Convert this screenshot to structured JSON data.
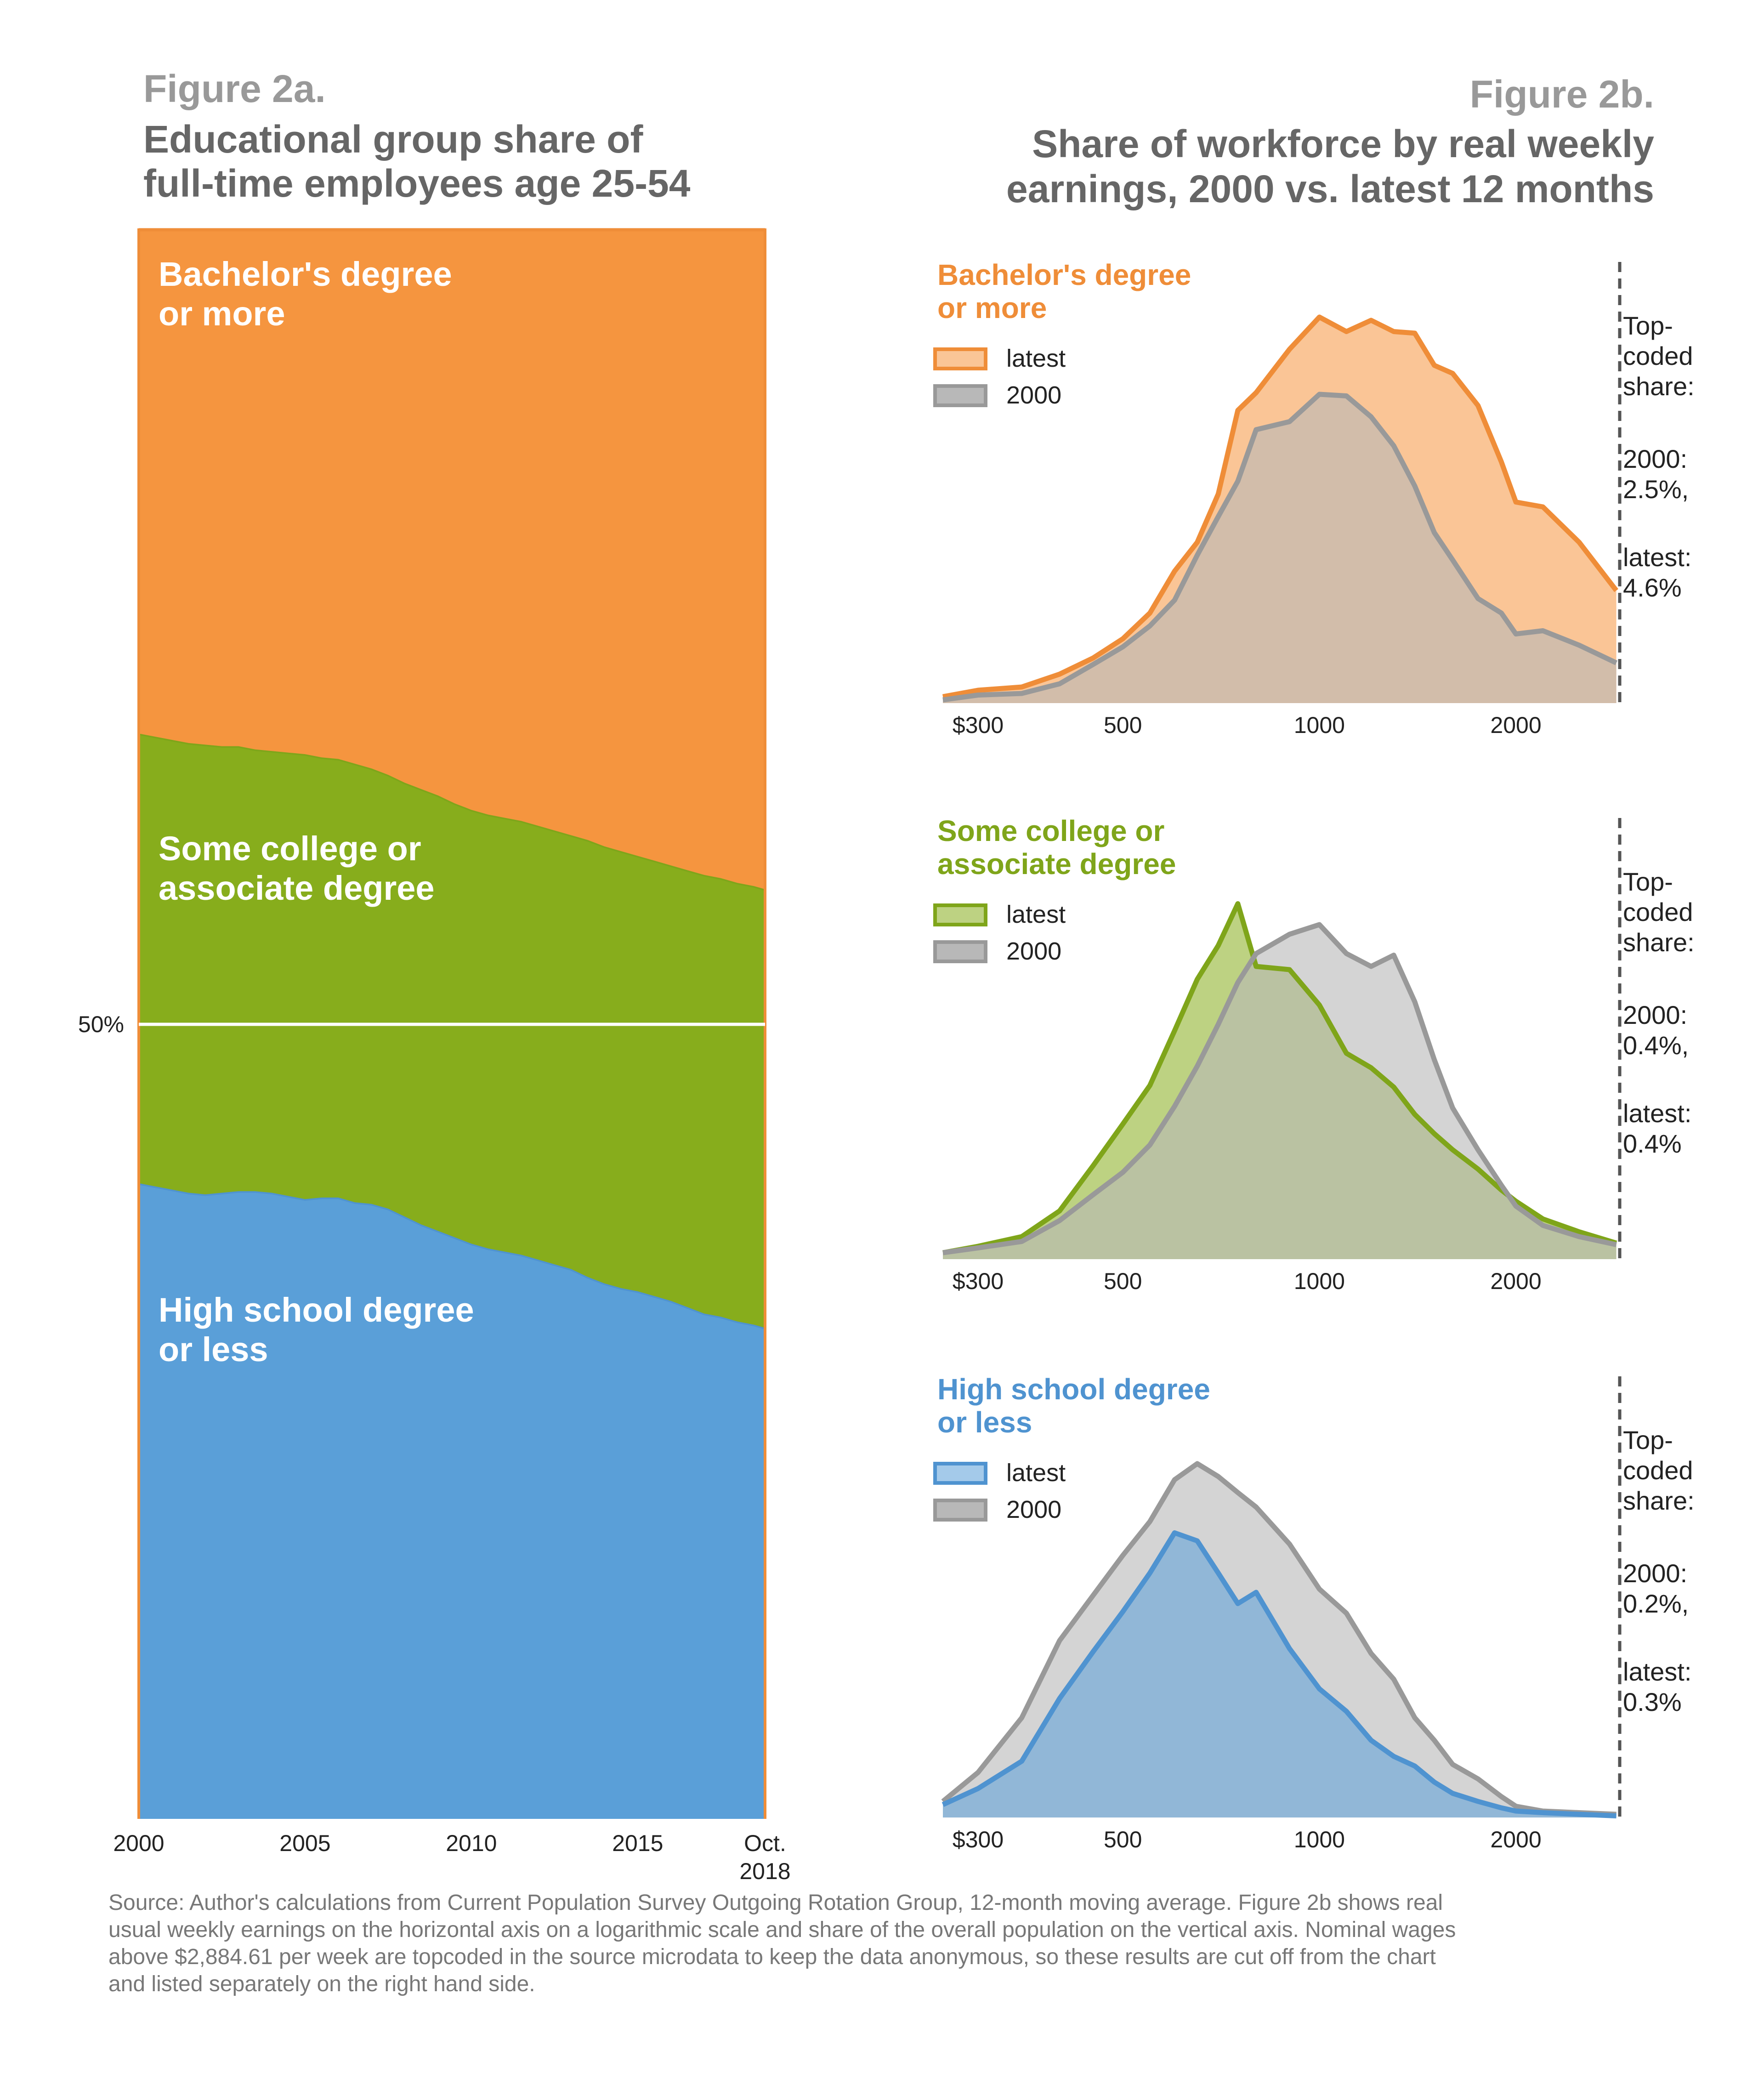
{
  "colors": {
    "bachelor": "#f5953f",
    "some_college": "#87ad1c",
    "high_school": "#5a9fd8",
    "bachelor_dark": "#ef8d38",
    "some_college_dark": "#7fa51a",
    "high_school_dark": "#4f93d0",
    "gray": "#999999",
    "gray_fill": "#b8b8b8",
    "title_gray": "#666666",
    "label_gray": "#999999"
  },
  "figure_a": {
    "label": "Figure 2a.",
    "title_line1": "Educational group share of",
    "title_line2": "full-time employees age 25-54"
  },
  "figure_b": {
    "label": "Figure 2b.",
    "title_line1": "Share of workforce by real weekly",
    "title_line2": "earnings, 2000 vs. latest 12 months"
  },
  "source_note": [
    "Source: Author's calculations from Current Population Survey Outgoing Rotation Group, 12-month moving average. Figure 2b shows real",
    "usual weekly earnings on the horizontal axis on a logarithmic scale and share of the overall population on the vertical axis. Nominal wages",
    "above $2,884.61 per week are topcoded in the source microdata to keep the data anonymous, so these results are cut off from the chart",
    "and listed separately on the right hand side."
  ],
  "chart_data": [
    {
      "type": "area",
      "stacked": true,
      "percent_stacked": true,
      "x_domain": [
        2000,
        2018.83
      ],
      "x_ticks": [
        {
          "value": 2000,
          "line1": "2000",
          "line2": ""
        },
        {
          "value": 2005,
          "line1": "2005",
          "line2": ""
        },
        {
          "value": 2010,
          "line1": "2010",
          "line2": ""
        },
        {
          "value": 2015,
          "line1": "2015",
          "line2": ""
        },
        {
          "value": 2018.83,
          "line1": "Oct.",
          "line2": "2018"
        }
      ],
      "ylim": [
        0,
        100
      ],
      "y_reference": {
        "value": 50,
        "label": "50%"
      },
      "band_labels": [
        {
          "series": "bachelor",
          "lines": [
            "Bachelor's degree",
            "or more"
          ]
        },
        {
          "series": "some_college",
          "lines": [
            "Some college or",
            "associate degree"
          ]
        },
        {
          "series": "high_school",
          "lines": [
            "High school degree",
            "or less"
          ]
        }
      ],
      "x": [
        2000.0,
        2000.5,
        2001.0,
        2001.5,
        2002.0,
        2002.5,
        2003.0,
        2003.5,
        2004.0,
        2004.5,
        2005.0,
        2005.5,
        2006.0,
        2006.5,
        2007.0,
        2007.5,
        2008.0,
        2008.5,
        2009.0,
        2009.5,
        2010.0,
        2010.5,
        2011.0,
        2011.5,
        2012.0,
        2012.5,
        2013.0,
        2013.5,
        2014.0,
        2014.5,
        2015.0,
        2015.5,
        2016.0,
        2016.5,
        2017.0,
        2017.5,
        2018.0,
        2018.5,
        2018.83
      ],
      "series": [
        {
          "key": "high_school",
          "values": [
            40.0,
            39.8,
            39.6,
            39.4,
            39.3,
            39.4,
            39.5,
            39.5,
            39.4,
            39.2,
            39.0,
            39.1,
            39.1,
            38.8,
            38.7,
            38.4,
            37.9,
            37.4,
            37.0,
            36.6,
            36.2,
            35.9,
            35.7,
            35.5,
            35.2,
            34.9,
            34.6,
            34.1,
            33.7,
            33.4,
            33.2,
            32.9,
            32.6,
            32.2,
            31.8,
            31.6,
            31.3,
            31.1,
            30.9
          ]
        },
        {
          "key": "some_college",
          "values": [
            28.3,
            28.3,
            28.3,
            28.3,
            28.3,
            28.1,
            28.0,
            27.8,
            27.8,
            27.9,
            28.0,
            27.7,
            27.6,
            27.6,
            27.4,
            27.3,
            27.3,
            27.4,
            27.4,
            27.3,
            27.3,
            27.3,
            27.3,
            27.3,
            27.3,
            27.3,
            27.3,
            27.5,
            27.5,
            27.5,
            27.4,
            27.4,
            27.4,
            27.5,
            27.6,
            27.6,
            27.6,
            27.6,
            27.6
          ]
        },
        {
          "key": "bachelor",
          "values": [
            31.7,
            31.9,
            32.1,
            32.3,
            32.4,
            32.5,
            32.5,
            32.7,
            32.8,
            32.9,
            33.0,
            33.2,
            33.3,
            33.6,
            33.9,
            34.3,
            34.8,
            35.2,
            35.6,
            36.1,
            36.5,
            36.8,
            37.0,
            37.2,
            37.5,
            37.8,
            38.1,
            38.4,
            38.8,
            39.1,
            39.4,
            39.7,
            40.0,
            40.3,
            40.6,
            40.8,
            41.1,
            41.3,
            41.5
          ]
        }
      ]
    },
    {
      "type": "area",
      "group": "bachelor",
      "title_lines": [
        "Bachelor's degree",
        "or more"
      ],
      "x_scale": "log",
      "x_domain": [
        265,
        2884.61
      ],
      "x_ticks": [
        {
          "value": 300,
          "label": "$300"
        },
        {
          "value": 500,
          "label": "500"
        },
        {
          "value": 1000,
          "label": "1000"
        },
        {
          "value": 2000,
          "label": "2000"
        }
      ],
      "ylim": [
        0,
        2.4
      ],
      "legend": [
        "latest",
        "2000"
      ],
      "x": [
        265,
        300,
        350,
        400,
        450,
        500,
        550,
        600,
        650,
        700,
        750,
        800,
        900,
        1000,
        1100,
        1200,
        1300,
        1400,
        1500,
        1600,
        1750,
        1900,
        2000,
        2200,
        2500,
        2850
      ],
      "series": [
        {
          "name": "latest",
          "values": [
            0.04,
            0.08,
            0.1,
            0.18,
            0.28,
            0.4,
            0.56,
            0.82,
            1.0,
            1.3,
            1.82,
            1.93,
            2.2,
            2.4,
            2.31,
            2.38,
            2.31,
            2.3,
            2.1,
            2.05,
            1.85,
            1.5,
            1.25,
            1.22,
            1.0,
            0.7
          ]
        },
        {
          "name": "2000",
          "values": [
            0.02,
            0.05,
            0.06,
            0.12,
            0.24,
            0.35,
            0.48,
            0.64,
            0.92,
            1.16,
            1.38,
            1.7,
            1.75,
            1.92,
            1.91,
            1.78,
            1.6,
            1.35,
            1.06,
            0.89,
            0.65,
            0.56,
            0.43,
            0.45,
            0.36,
            0.25
          ]
        }
      ],
      "topcoded": {
        "line1": "Top-",
        "line2": "coded",
        "line3": "share:",
        "y2000_label": "2000:",
        "y2000_value": "2.5%,",
        "latest_label": "latest:",
        "latest_value": "4.6%"
      }
    },
    {
      "type": "area",
      "group": "some_college",
      "title_lines": [
        "Some college or",
        "associate degree"
      ],
      "x_scale": "log",
      "x_domain": [
        265,
        2884.61
      ],
      "x_ticks": [
        {
          "value": 300,
          "label": "$300"
        },
        {
          "value": 500,
          "label": "500"
        },
        {
          "value": 1000,
          "label": "1000"
        },
        {
          "value": 2000,
          "label": "2000"
        }
      ],
      "ylim": [
        0,
        2.4
      ],
      "legend": [
        "latest",
        "2000"
      ],
      "x": [
        265,
        300,
        350,
        400,
        450,
        500,
        550,
        600,
        650,
        700,
        750,
        800,
        900,
        1000,
        1100,
        1200,
        1300,
        1400,
        1500,
        1600,
        1750,
        1900,
        2000,
        2200,
        2500,
        2850
      ],
      "series": [
        {
          "name": "latest",
          "values": [
            0.04,
            0.08,
            0.14,
            0.3,
            0.58,
            0.84,
            1.08,
            1.42,
            1.74,
            1.95,
            2.21,
            1.82,
            1.8,
            1.58,
            1.28,
            1.19,
            1.07,
            0.9,
            0.78,
            0.68,
            0.56,
            0.43,
            0.36,
            0.25,
            0.17,
            0.1
          ]
        },
        {
          "name": "2000",
          "values": [
            0.04,
            0.07,
            0.11,
            0.24,
            0.4,
            0.54,
            0.71,
            0.95,
            1.2,
            1.46,
            1.72,
            1.9,
            2.02,
            2.08,
            1.9,
            1.82,
            1.89,
            1.6,
            1.24,
            0.94,
            0.68,
            0.46,
            0.33,
            0.21,
            0.14,
            0.09
          ]
        }
      ],
      "topcoded": {
        "line1": "Top-",
        "line2": "coded",
        "line3": "share:",
        "y2000_label": "2000:",
        "y2000_value": "0.4%,",
        "latest_label": "latest:",
        "latest_value": "0.4%"
      }
    },
    {
      "type": "area",
      "group": "high_school",
      "title_lines": [
        "High school degree",
        "or less"
      ],
      "x_scale": "log",
      "x_domain": [
        265,
        2884.61
      ],
      "x_ticks": [
        {
          "value": 300,
          "label": "$300"
        },
        {
          "value": 500,
          "label": "500"
        },
        {
          "value": 1000,
          "label": "1000"
        },
        {
          "value": 2000,
          "label": "2000"
        }
      ],
      "ylim": [
        0,
        2.4
      ],
      "legend": [
        "latest",
        "2000"
      ],
      "x": [
        265,
        300,
        350,
        400,
        450,
        500,
        550,
        600,
        650,
        700,
        750,
        800,
        900,
        1000,
        1100,
        1200,
        1300,
        1400,
        1500,
        1600,
        1750,
        1900,
        2000,
        2200,
        2500,
        2850
      ],
      "series": [
        {
          "name": "latest",
          "values": [
            0.08,
            0.18,
            0.35,
            0.74,
            1.03,
            1.28,
            1.52,
            1.77,
            1.72,
            1.52,
            1.33,
            1.4,
            1.05,
            0.8,
            0.66,
            0.48,
            0.38,
            0.32,
            0.22,
            0.15,
            0.1,
            0.06,
            0.04,
            0.03,
            0.02,
            0.01
          ]
        },
        {
          "name": "2000",
          "values": [
            0.1,
            0.28,
            0.62,
            1.1,
            1.38,
            1.63,
            1.84,
            2.1,
            2.2,
            2.12,
            2.02,
            1.93,
            1.7,
            1.42,
            1.27,
            1.02,
            0.86,
            0.62,
            0.48,
            0.33,
            0.24,
            0.13,
            0.07,
            0.04,
            0.03,
            0.02
          ]
        }
      ],
      "topcoded": {
        "line1": "Top-",
        "line2": "coded",
        "line3": "share:",
        "y2000_label": "2000:",
        "y2000_value": "0.2%,",
        "latest_label": "latest:",
        "latest_value": "0.3%"
      }
    }
  ]
}
